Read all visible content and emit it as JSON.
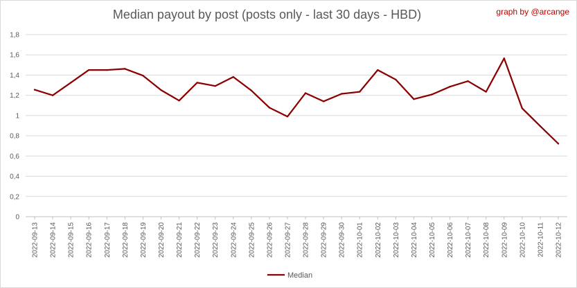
{
  "chart_data": {
    "type": "line",
    "title": "Median payout by post (posts only - last 30 days - HBD)",
    "credit": "graph by @arcange",
    "x": [
      "2022-09-13",
      "2022-09-14",
      "2022-09-15",
      "2022-09-16",
      "2022-09-17",
      "2022-09-18",
      "2022-09-19",
      "2022-09-20",
      "2022-09-21",
      "2022-09-22",
      "2022-09-23",
      "2022-09-24",
      "2022-09-25",
      "2022-09-26",
      "2022-09-27",
      "2022-09-28",
      "2022-09-29",
      "2022-09-30",
      "2022-10-01",
      "2022-10-02",
      "2022-10-03",
      "2022-10-04",
      "2022-10-05",
      "2022-10-06",
      "2022-10-07",
      "2022-10-08",
      "2022-10-09",
      "2022-10-10",
      "2022-10-11",
      "2022-10-12"
    ],
    "series": [
      {
        "name": "Median",
        "color": "#8b0000",
        "values": [
          1.255,
          1.2,
          1.325,
          1.45,
          1.45,
          1.462,
          1.395,
          1.252,
          1.148,
          1.325,
          1.292,
          1.382,
          1.248,
          1.078,
          0.99,
          1.222,
          1.14,
          1.215,
          1.235,
          1.45,
          1.355,
          1.162,
          1.208,
          1.285,
          1.34,
          1.235,
          1.565,
          1.072,
          0.895,
          0.722
        ]
      }
    ],
    "ylim": [
      0,
      1.8
    ],
    "yticks": [
      "0",
      "0,2",
      "0,4",
      "0,6",
      "0,8",
      "1",
      "1,2",
      "1,4",
      "1,6",
      "1,8"
    ],
    "grid": true,
    "legend": "bottom"
  }
}
